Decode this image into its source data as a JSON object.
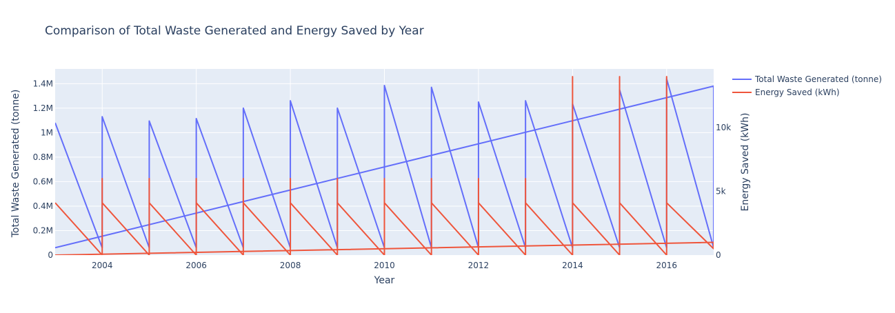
{
  "chart_data": {
    "type": "line",
    "title": "Comparison of Total Waste Generated and Energy Saved by Year",
    "xlabel": "Year",
    "ylabel_left": "Total Waste Generated (tonne)",
    "ylabel_right": "Energy Saved (kWh)",
    "xlim": [
      2003,
      2017
    ],
    "ylim_left": [
      0,
      1520000
    ],
    "ylim_right": [
      0,
      14600
    ],
    "grid": true,
    "legend_position": "top-right",
    "x_ticks": [
      {
        "value": 2004,
        "label": "2004"
      },
      {
        "value": 2006,
        "label": "2006"
      },
      {
        "value": 2008,
        "label": "2008"
      },
      {
        "value": 2010,
        "label": "2010"
      },
      {
        "value": 2012,
        "label": "2012"
      },
      {
        "value": 2014,
        "label": "2014"
      },
      {
        "value": 2016,
        "label": "2016"
      }
    ],
    "y_left_ticks": [
      {
        "value": 0,
        "label": "0"
      },
      {
        "value": 200000,
        "label": "0.2M"
      },
      {
        "value": 400000,
        "label": "0.4M"
      },
      {
        "value": 600000,
        "label": "0.6M"
      },
      {
        "value": 800000,
        "label": "0.8M"
      },
      {
        "value": 1000000,
        "label": "1M"
      },
      {
        "value": 1200000,
        "label": "1.2M"
      },
      {
        "value": 1400000,
        "label": "1.4M"
      }
    ],
    "y_right_ticks": [
      {
        "value": 0,
        "label": "0"
      },
      {
        "value": 5000,
        "label": "5k"
      },
      {
        "value": 10000,
        "label": "10k"
      }
    ],
    "series": [
      {
        "name": "Total Waste Generated (tonne)",
        "axis": "left",
        "color": "#636efa",
        "x": [
          2003,
          2004,
          2004,
          2005,
          2005,
          2006,
          2006,
          2007,
          2007,
          2008,
          2008,
          2009,
          2009,
          2010,
          2010,
          2011,
          2011,
          2012,
          2012,
          2013,
          2013,
          2014,
          2014,
          2015,
          2015,
          2016,
          2016,
          2017,
          2017,
          2003
        ],
        "y": [
          1080000,
          60000,
          1130000,
          60000,
          1095000,
          60000,
          1115000,
          60000,
          1200000,
          60000,
          1260000,
          60000,
          1200000,
          60000,
          1385000,
          60000,
          1370000,
          60000,
          1250000,
          60000,
          1260000,
          60000,
          1235000,
          60000,
          1350000,
          60000,
          1440000,
          60000,
          1380000,
          60000
        ]
      },
      {
        "name": "Energy Saved (kWh)",
        "axis": "right",
        "color": "#ef553b",
        "x": [
          2003,
          2004,
          2004,
          2004,
          2004,
          2005,
          2005,
          2005,
          2005,
          2006,
          2006,
          2006,
          2006,
          2007,
          2007,
          2007,
          2007,
          2008,
          2008,
          2008,
          2008,
          2009,
          2009,
          2009,
          2009,
          2010,
          2010,
          2010,
          2010,
          2011,
          2011,
          2011,
          2011,
          2012,
          2012,
          2012,
          2012,
          2013,
          2013,
          2013,
          2013,
          2014,
          2014,
          2014,
          2014,
          2015,
          2015,
          2015,
          2015,
          2016,
          2016,
          2016,
          2016,
          2017,
          2017,
          2003
        ],
        "y": [
          4100,
          0,
          6000,
          0,
          4100,
          0,
          6000,
          0,
          4100,
          0,
          6000,
          0,
          4100,
          0,
          6000,
          0,
          4100,
          0,
          6000,
          0,
          4100,
          0,
          6000,
          0,
          4100,
          0,
          6000,
          0,
          4100,
          0,
          6000,
          0,
          4100,
          0,
          6000,
          0,
          4100,
          0,
          6000,
          0,
          4100,
          0,
          14000,
          0,
          4100,
          0,
          14000,
          0,
          4100,
          0,
          14000,
          0,
          4100,
          500,
          1000,
          0
        ]
      }
    ]
  }
}
